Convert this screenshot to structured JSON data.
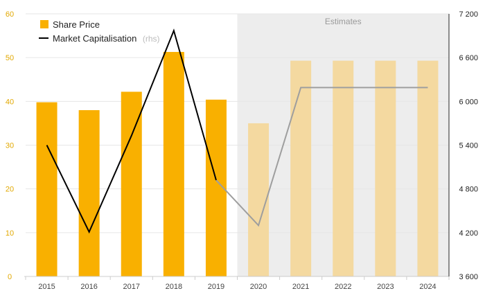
{
  "chart_data": {
    "type": "bar+line",
    "categories": [
      "2015",
      "2016",
      "2017",
      "2018",
      "2019",
      "2020",
      "2021",
      "2022",
      "2023",
      "2024"
    ],
    "series": [
      {
        "name": "Share Price",
        "type": "bar",
        "axis": "left",
        "values": [
          39.8,
          38.0,
          42.2,
          51.3,
          40.4,
          35.0,
          49.3,
          49.3,
          49.3,
          49.3
        ]
      },
      {
        "name": "Market Capitalisation",
        "type": "line",
        "axis": "right",
        "values": [
          5400,
          4210,
          5530,
          6970,
          4920,
          4300,
          6190,
          6190,
          6190,
          6190
        ]
      }
    ],
    "estimate_start_index": 5,
    "estimates_label": "Estimates",
    "left_axis": {
      "ylim": [
        0,
        60
      ],
      "ticks": [
        "0",
        "10",
        "20",
        "30",
        "40",
        "50",
        "60"
      ]
    },
    "right_axis": {
      "ylim": [
        3600,
        7200
      ],
      "ticks": [
        "3 600",
        "4 200",
        "4 800",
        "5 400",
        "6 000",
        "6 600",
        "7 200"
      ]
    },
    "legend": {
      "share_price": "Share Price",
      "market_cap": "Market Capitalisation",
      "market_cap_suffix": "(rhs)",
      "position": "top-left"
    },
    "grid": true,
    "colors": {
      "bar": "#f9b000",
      "bar_estimate": "#f4d9a0",
      "line": "#000000",
      "line_estimate": "#9e9e9e",
      "estimate_band": "#ededed"
    }
  }
}
